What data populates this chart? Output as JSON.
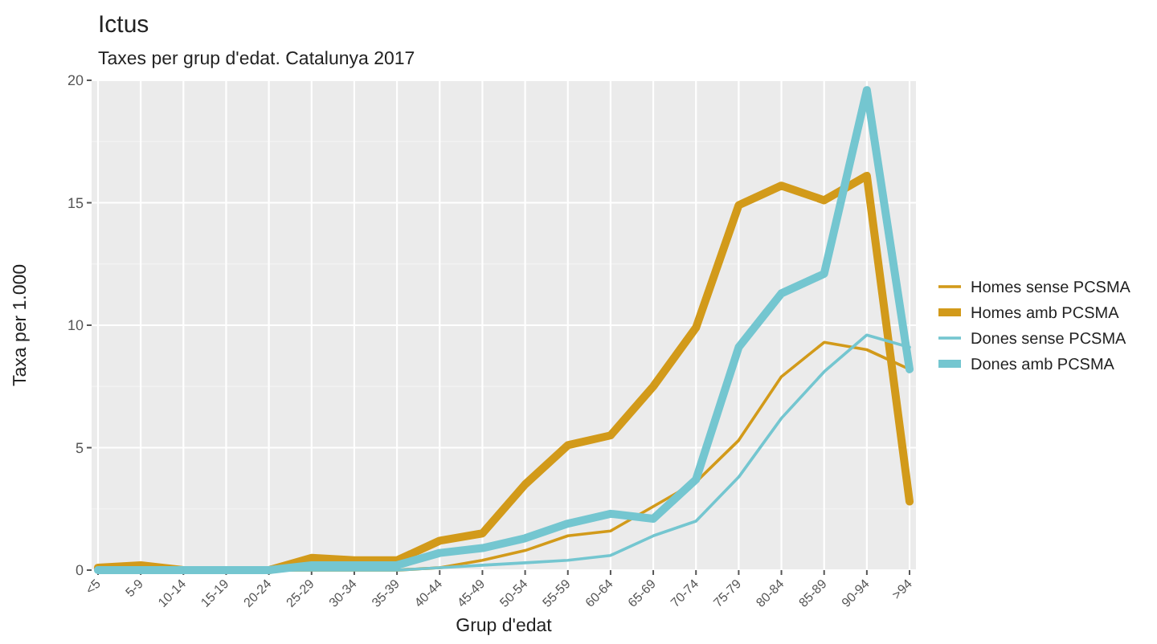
{
  "chart_data": {
    "type": "line",
    "title": "Ictus",
    "subtitle": "Taxes per grup d'edat. Catalunya 2017",
    "xlabel": "Grup d'edat",
    "ylabel": "Taxa per 1.000",
    "categories": [
      "<5",
      "5-9",
      "10-14",
      "15-19",
      "20-24",
      "25-29",
      "30-34",
      "35-39",
      "40-44",
      "45-49",
      "50-54",
      "55-59",
      "60-64",
      "65-69",
      "70-74",
      "75-79",
      "80-84",
      "85-89",
      "90-94",
      ">94"
    ],
    "ylim": [
      0,
      20
    ],
    "yticks": [
      0,
      5,
      10,
      15,
      20
    ],
    "grid": true,
    "legend": "right",
    "line_style": "solid",
    "series": [
      {
        "name": "Homes sense PCSMA",
        "color": "#d29a1a",
        "values": [
          0,
          0,
          0,
          0,
          0,
          0,
          0,
          0,
          0.1,
          0.4,
          0.8,
          1.4,
          1.6,
          2.6,
          3.6,
          5.3,
          7.9,
          9.3,
          9.0,
          8.2
        ]
      },
      {
        "name": "Homes amb PCSMA",
        "color": "#d29a1a",
        "values": [
          0.1,
          0.2,
          0,
          0,
          0,
          0.5,
          0.4,
          0.4,
          1.2,
          1.5,
          3.5,
          5.1,
          5.5,
          7.5,
          9.9,
          14.9,
          15.7,
          15.1,
          16.1,
          2.8
        ]
      },
      {
        "name": "Dones sense PCSMA",
        "color": "#74c6d0",
        "values": [
          0,
          0,
          0,
          0,
          0,
          0,
          0,
          0,
          0.1,
          0.2,
          0.3,
          0.4,
          0.6,
          1.4,
          2.0,
          3.8,
          6.2,
          8.1,
          9.6,
          9.1
        ]
      },
      {
        "name": "Dones amb PCSMA",
        "color": "#74c6d0",
        "values": [
          0,
          0,
          0,
          0,
          0,
          0.2,
          0.2,
          0.2,
          0.7,
          0.9,
          1.3,
          1.9,
          2.3,
          2.1,
          3.7,
          9.1,
          11.3,
          12.1,
          19.6,
          8.2
        ]
      }
    ]
  }
}
